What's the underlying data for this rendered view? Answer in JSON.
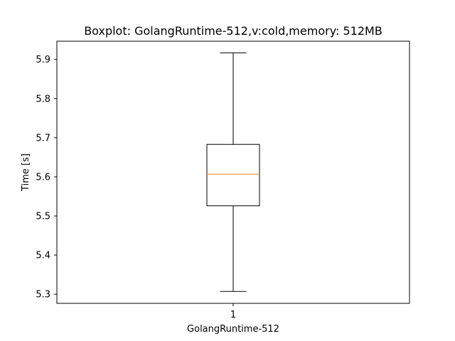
{
  "chart_data": {
    "type": "box",
    "title": "Boxplot: GolangRuntime-512,v:cold,memory: 512MB",
    "xlabel": "GolangRuntime-512",
    "ylabel": "Time [s]",
    "ylim": [
      5.2767,
      5.9467
    ],
    "x_ticks": [
      "1"
    ],
    "y_ticks": [
      "5.3",
      "5.4",
      "5.5",
      "5.6",
      "5.7",
      "5.8",
      "5.9"
    ],
    "y_tick_values": [
      5.3,
      5.4,
      5.5,
      5.6,
      5.7,
      5.8,
      5.9
    ],
    "boxes": [
      {
        "category": "1",
        "whisker_low": 5.307,
        "q1": 5.526,
        "median": 5.607,
        "q3": 5.683,
        "whisker_high": 5.917
      }
    ],
    "colors": {
      "median": "#ff7f0e",
      "box": "#000000",
      "axes": "#000000"
    },
    "grid": false
  }
}
